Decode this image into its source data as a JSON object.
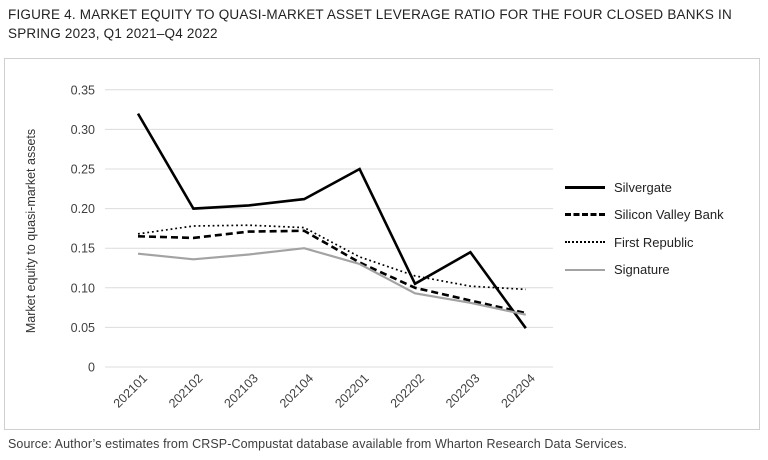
{
  "figure": {
    "title_line1": "FIGURE 4. MARKET EQUITY TO QUASI-MARKET ASSET LEVERAGE RATIO FOR THE FOUR CLOSED BANKS IN",
    "title_line2": "SPRING 2023, Q1 2021–Q4 2022",
    "source": "Source: Author’s estimates from CRSP-Compustat database available from Wharton Research Data Services."
  },
  "chart_data": {
    "type": "line",
    "title": "FIGURE 4. MARKET EQUITY TO QUASI-MARKET ASSET LEVERAGE RATIO FOR THE FOUR CLOSED BANKS IN SPRING 2023, Q1 2021–Q4 2022",
    "xlabel": "",
    "ylabel": "Market equity to quasi-market assets",
    "ylim": [
      0,
      0.35
    ],
    "ytick_values": [
      0.35,
      0.3,
      0.25,
      0.2,
      0.15,
      0.1,
      0.05,
      0
    ],
    "ytick_labels": [
      "0.35",
      "0.30",
      "0.25",
      "0.20",
      "0.15",
      "0.10",
      "0.05",
      "0"
    ],
    "grid": true,
    "legend_position": "right",
    "categories": [
      "202101",
      "202102",
      "202103",
      "202104",
      "202201",
      "202202",
      "202203",
      "202204"
    ],
    "series": [
      {
        "name": "Silvergate",
        "style": "solid",
        "color": "#000000",
        "width": 2.6,
        "values": [
          0.32,
          0.2,
          0.204,
          0.212,
          0.25,
          0.105,
          0.145,
          0.049
        ]
      },
      {
        "name": "Silicon Valley Bank",
        "style": "dashed",
        "color": "#000000",
        "width": 2.6,
        "values": [
          0.165,
          0.163,
          0.171,
          0.172,
          0.132,
          0.1,
          0.084,
          0.068
        ]
      },
      {
        "name": "First Republic",
        "style": "dotted",
        "color": "#000000",
        "width": 1.7,
        "values": [
          0.168,
          0.178,
          0.179,
          0.176,
          0.139,
          0.115,
          0.102,
          0.098
        ]
      },
      {
        "name": "Signature",
        "style": "solid",
        "color": "#a3a3a3",
        "width": 2.2,
        "values": [
          0.143,
          0.136,
          0.142,
          0.15,
          0.13,
          0.093,
          0.081,
          0.066
        ]
      }
    ]
  },
  "colors": {
    "grid": "#dcdcdc",
    "frame_border": "#cfcfcf",
    "axis_text": "#404040",
    "title_text": "#222222"
  }
}
